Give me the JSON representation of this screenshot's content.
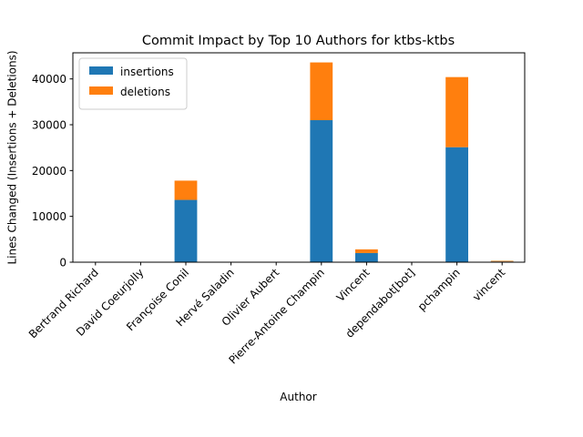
{
  "chart_data": {
    "type": "bar",
    "stacked": true,
    "title": "Commit Impact by Top 10 Authors for ktbs-ktbs",
    "xlabel": "Author",
    "ylabel": "Lines Changed (Insertions + Deletions)",
    "categories": [
      "Bertrand Richard",
      "David Coeurjolly",
      "Françoise Conil",
      "Hervé Saladin",
      "Olivier Aubert",
      "Pierre-Antoine Champin",
      "Vincent",
      "dependabot[bot]",
      "pchampin",
      "vincent"
    ],
    "series": [
      {
        "name": "insertions",
        "color": "#1f77b4",
        "values": [
          0,
          0,
          13600,
          0,
          0,
          31000,
          2000,
          0,
          25100,
          150
        ]
      },
      {
        "name": "deletions",
        "color": "#ff7f0e",
        "values": [
          0,
          0,
          4200,
          0,
          0,
          12600,
          800,
          0,
          15300,
          150
        ]
      }
    ],
    "ylim": [
      0,
      45700
    ],
    "yticks": [
      0,
      10000,
      20000,
      30000,
      40000
    ],
    "ytick_labels": [
      "0",
      "10000",
      "20000",
      "30000",
      "40000"
    ],
    "legend_position": "top-left",
    "grid": false
  }
}
